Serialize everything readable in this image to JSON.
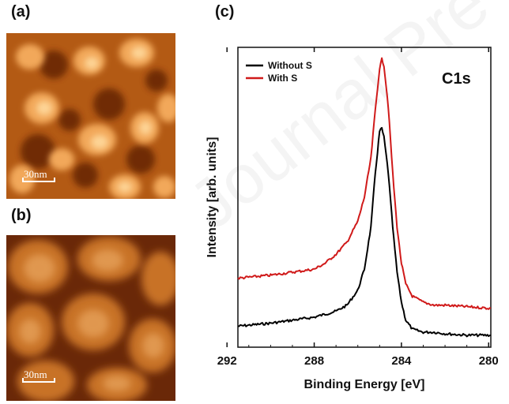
{
  "panels": {
    "a": {
      "label": "(a)",
      "scale_label": "30nm"
    },
    "b": {
      "label": "(b)",
      "scale_label": "30nm"
    },
    "c": {
      "label": "(c)"
    }
  },
  "watermark": "Journal Pre-proof",
  "colors": {
    "without": "#000000",
    "with": "#d01a1a",
    "afm_dark": "#5a1d05",
    "afm_mid": "#c06418",
    "afm_light": "#ffd89a"
  },
  "chart_data": {
    "type": "line",
    "title": "C1s",
    "xlabel": "Binding Energy [eV]",
    "ylabel": "Intensity [arb. units]",
    "xlim": [
      291.5,
      279.9
    ],
    "ylim": [
      0,
      1
    ],
    "x_reversed": true,
    "xticks": [
      292,
      288,
      284,
      280
    ],
    "legend_position": "top-left",
    "series": [
      {
        "name": "Without S",
        "color": "#000000",
        "x": [
          291.5,
          290,
          289,
          288,
          287,
          286.5,
          286,
          285.7,
          285.4,
          285.2,
          285.0,
          284.9,
          284.8,
          284.6,
          284.4,
          284.2,
          284.0,
          283.8,
          283.5,
          283.0,
          282.5,
          282.0,
          281,
          280,
          279.9
        ],
        "y": [
          0.07,
          0.08,
          0.09,
          0.1,
          0.12,
          0.14,
          0.19,
          0.26,
          0.4,
          0.58,
          0.72,
          0.73,
          0.7,
          0.58,
          0.4,
          0.25,
          0.15,
          0.09,
          0.06,
          0.05,
          0.05,
          0.045,
          0.04,
          0.04,
          0.04
        ]
      },
      {
        "name": "With S",
        "color": "#d01a1a",
        "x": [
          291.5,
          290,
          289,
          288,
          287.5,
          287,
          286.5,
          286,
          285.7,
          285.4,
          285.2,
          285.0,
          284.9,
          284.8,
          284.6,
          284.4,
          284.2,
          284.0,
          283.8,
          283.5,
          283.0,
          282.5,
          282.0,
          281,
          280,
          279.9
        ],
        "y": [
          0.23,
          0.24,
          0.25,
          0.26,
          0.28,
          0.31,
          0.35,
          0.42,
          0.5,
          0.63,
          0.79,
          0.93,
          0.96,
          0.94,
          0.8,
          0.58,
          0.4,
          0.28,
          0.21,
          0.17,
          0.15,
          0.14,
          0.14,
          0.135,
          0.13,
          0.13
        ]
      }
    ]
  }
}
